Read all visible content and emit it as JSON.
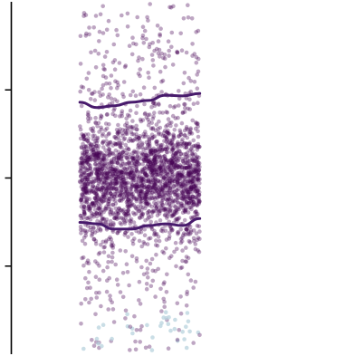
{
  "chart_data": {
    "type": "scatter",
    "title": "",
    "xlabel": "",
    "ylabel": "",
    "grid": false,
    "legend": "none",
    "description_free": true,
    "xlim": [
      0,
      1
    ],
    "ylim": [
      0,
      1
    ],
    "yticks": [
      0.25,
      0.5,
      0.75
    ],
    "tick_labels_visible": false,
    "series": [
      {
        "kind": "jittered-points",
        "x_range": [
          0.2,
          0.55
        ],
        "center_y": 0.5,
        "approx_count": 2600,
        "point_color_dense": "#440154",
        "point_color_light": "#b8d3de",
        "alpha": 0.35
      }
    ],
    "bands": [
      {
        "kind": "upper-line",
        "color": "#481a6c",
        "points": [
          [
            0.2,
            0.715
          ],
          [
            0.25,
            0.7
          ],
          [
            0.3,
            0.705
          ],
          [
            0.35,
            0.715
          ],
          [
            0.4,
            0.72
          ],
          [
            0.45,
            0.735
          ],
          [
            0.5,
            0.733
          ],
          [
            0.55,
            0.74
          ]
        ]
      },
      {
        "kind": "lower-line",
        "color": "#481a6c",
        "points": [
          [
            0.2,
            0.374
          ],
          [
            0.25,
            0.37
          ],
          [
            0.3,
            0.355
          ],
          [
            0.35,
            0.355
          ],
          [
            0.4,
            0.365
          ],
          [
            0.45,
            0.37
          ],
          [
            0.5,
            0.365
          ],
          [
            0.55,
            0.385
          ]
        ]
      }
    ]
  }
}
